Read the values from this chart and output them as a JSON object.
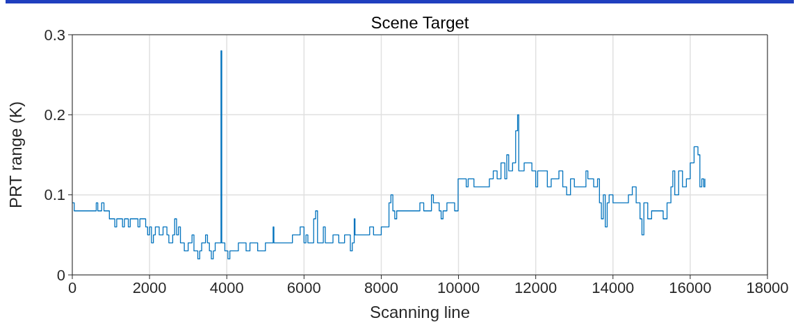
{
  "chart_data": {
    "type": "step",
    "title": "Scene Target",
    "xlabel": "Scanning line",
    "ylabel": "PRT range (K)",
    "xlim": [
      0,
      18000
    ],
    "xticks": [
      0,
      2000,
      4000,
      6000,
      8000,
      10000,
      12000,
      14000,
      16000,
      18000
    ],
    "ylim": [
      0,
      0.3
    ],
    "yticks": [
      0,
      0.1,
      0.2,
      0.3
    ],
    "grid": true,
    "series": [
      {
        "color": "#0072bd",
        "x": [
          0,
          50,
          620,
          660,
          760,
          820,
          960,
          1100,
          1150,
          1300,
          1350,
          1450,
          1500,
          1700,
          1750,
          1900,
          1950,
          2000,
          2050,
          2100,
          2150,
          2250,
          2350,
          2450,
          2500,
          2600,
          2650,
          2700,
          2750,
          2800,
          2900,
          3000,
          3100,
          3150,
          3250,
          3300,
          3350,
          3450,
          3500,
          3550,
          3600,
          3650,
          3700,
          3850,
          3870,
          3950,
          4030,
          4080,
          4300,
          4500,
          4600,
          4800,
          5000,
          5200,
          5220,
          5700,
          5900,
          6000,
          6050,
          6100,
          6250,
          6300,
          6350,
          6500,
          6550,
          6750,
          6900,
          7050,
          7200,
          7250,
          7300,
          7320,
          7700,
          7800,
          8000,
          8200,
          8250,
          8300,
          8350,
          8400,
          9000,
          9100,
          9300,
          9350,
          9500,
          9550,
          9600,
          9700,
          9900,
          9990,
          10200,
          10250,
          10400,
          10800,
          10900,
          11000,
          11100,
          11200,
          11250,
          11300,
          11400,
          11480,
          11530,
          11560,
          11700,
          11900,
          12000,
          12050,
          12300,
          12400,
          12600,
          12700,
          12800,
          12900,
          13000,
          13300,
          13350,
          13500,
          13600,
          13650,
          13700,
          13750,
          13800,
          13850,
          13900,
          14000,
          14400,
          14500,
          14600,
          14700,
          14750,
          14800,
          14900,
          15000,
          15300,
          15400,
          15500,
          15550,
          15600,
          15700,
          15800,
          15900,
          16000,
          16100,
          16200,
          16250,
          16300,
          16350,
          16380
        ],
        "values": [
          0.09,
          0.08,
          0.09,
          0.08,
          0.09,
          0.08,
          0.07,
          0.06,
          0.07,
          0.06,
          0.07,
          0.06,
          0.07,
          0.06,
          0.07,
          0.06,
          0.05,
          0.06,
          0.04,
          0.05,
          0.06,
          0.05,
          0.06,
          0.05,
          0.04,
          0.05,
          0.07,
          0.05,
          0.06,
          0.04,
          0.03,
          0.04,
          0.05,
          0.03,
          0.02,
          0.03,
          0.04,
          0.05,
          0.04,
          0.03,
          0.02,
          0.03,
          0.04,
          0.28,
          0.04,
          0.03,
          0.02,
          0.03,
          0.04,
          0.03,
          0.04,
          0.03,
          0.04,
          0.06,
          0.04,
          0.05,
          0.06,
          0.04,
          0.05,
          0.04,
          0.07,
          0.08,
          0.04,
          0.06,
          0.04,
          0.05,
          0.04,
          0.05,
          0.03,
          0.04,
          0.07,
          0.05,
          0.06,
          0.05,
          0.06,
          0.09,
          0.1,
          0.08,
          0.07,
          0.08,
          0.09,
          0.08,
          0.1,
          0.09,
          0.08,
          0.07,
          0.08,
          0.09,
          0.08,
          0.12,
          0.11,
          0.12,
          0.11,
          0.12,
          0.13,
          0.12,
          0.14,
          0.12,
          0.15,
          0.13,
          0.14,
          0.18,
          0.2,
          0.13,
          0.14,
          0.13,
          0.11,
          0.13,
          0.11,
          0.12,
          0.13,
          0.11,
          0.1,
          0.12,
          0.11,
          0.13,
          0.12,
          0.11,
          0.12,
          0.09,
          0.07,
          0.1,
          0.06,
          0.09,
          0.1,
          0.09,
          0.1,
          0.11,
          0.09,
          0.07,
          0.05,
          0.09,
          0.07,
          0.08,
          0.07,
          0.09,
          0.11,
          0.13,
          0.1,
          0.13,
          0.11,
          0.12,
          0.14,
          0.16,
          0.15,
          0.11,
          0.12,
          0.11,
          0.12
        ]
      }
    ]
  }
}
